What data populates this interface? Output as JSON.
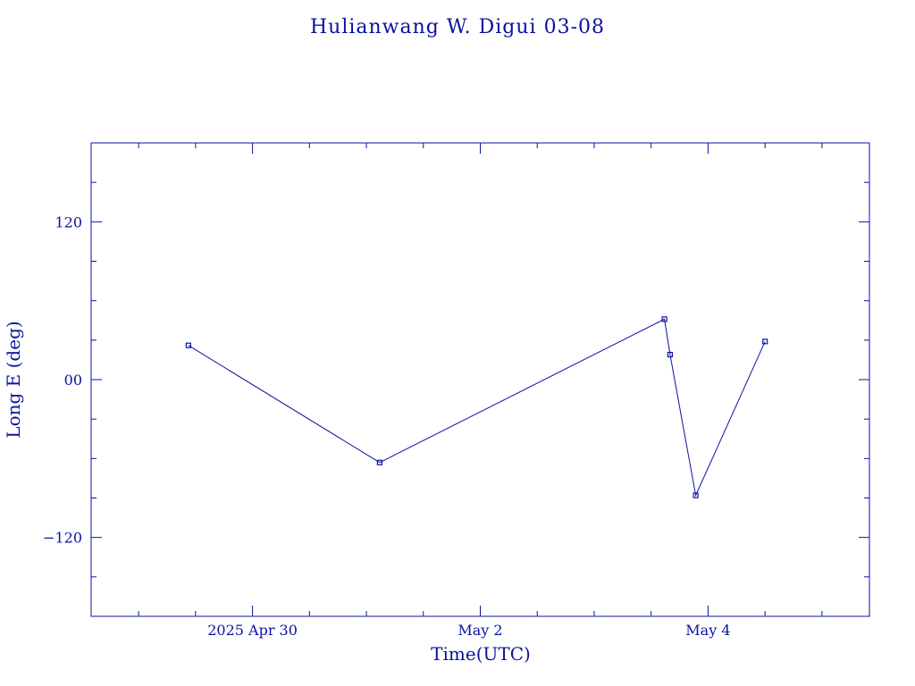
{
  "chart_data": {
    "type": "line",
    "title": "Hulianwang W. Digui 03-08",
    "xlabel": "Time(UTC)",
    "ylabel": "Long E (deg)",
    "xlim": [
      "2025-04-28T14:00",
      "2025-05-05T10:00"
    ],
    "ylim": [
      -180,
      180
    ],
    "x_ticks": [
      {
        "t": "2025-04-30T00:00",
        "label": "2025 Apr 30"
      },
      {
        "t": "2025-05-02T00:00",
        "label": "May  2"
      },
      {
        "t": "2025-05-04T00:00",
        "label": "May  4"
      }
    ],
    "y_ticks": [
      {
        "v": 120,
        "label": "120"
      },
      {
        "v": 0,
        "label": "00"
      },
      {
        "v": -120,
        "label": "−120"
      }
    ],
    "series": [
      {
        "x": [
          "2025-04-29T10:30",
          "2025-05-01T02:48",
          "2025-05-03T14:48",
          "2025-05-03T16:00",
          "2025-05-03T21:24",
          "2025-05-04T12:00"
        ],
        "y": [
          26,
          -63,
          46,
          19,
          -88,
          29
        ]
      }
    ],
    "grid": false,
    "colors": {
      "ink": "#0a12a0",
      "background": "#ffffff"
    }
  }
}
